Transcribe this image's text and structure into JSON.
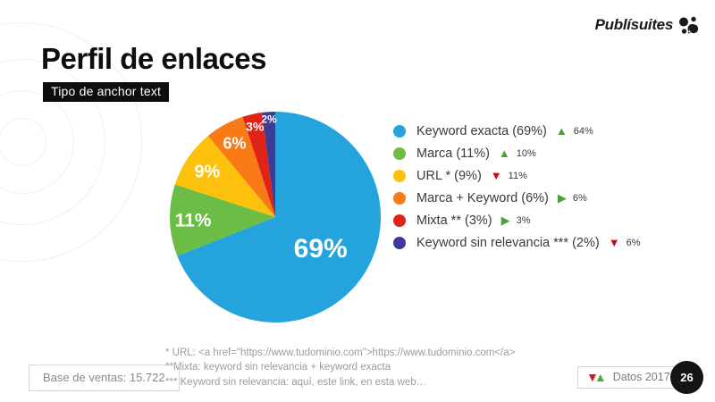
{
  "brand": {
    "logo_text": "Publísuites"
  },
  "header": {
    "title": "Perfil de enlaces",
    "subtitle_badge": "Tipo de anchor text"
  },
  "chart_data": {
    "type": "pie",
    "title": "Tipo de anchor text",
    "categories": [
      "Keyword exacta",
      "Marca",
      "URL *",
      "Marca + Keyword",
      "Mixta **",
      "Keyword sin relevancia ***"
    ],
    "values": [
      69,
      11,
      9,
      6,
      3,
      2
    ],
    "colors": [
      "#24A3DC",
      "#6BBD45",
      "#FCC10D",
      "#F87B18",
      "#E02318",
      "#3D3B98"
    ],
    "slice_labels": [
      "69%",
      "11%",
      "9%",
      "6%",
      "3%",
      "2%"
    ],
    "start_angle_deg": 0,
    "direction": "clockwise",
    "legend_position": "right",
    "comparison_year_2017_values": [
      64,
      10,
      11,
      6,
      3,
      6
    ]
  },
  "legend": {
    "items": [
      {
        "label": "Keyword exacta (69%)",
        "color": "#24A3DC",
        "trend": "up",
        "delta": "64%"
      },
      {
        "label": "Marca (11%)",
        "color": "#6BBD45",
        "trend": "up",
        "delta": "10%"
      },
      {
        "label": "URL * (9%)",
        "color": "#FCC10D",
        "trend": "down",
        "delta": "11%"
      },
      {
        "label": "Marca + Keyword (6%)",
        "color": "#F87B18",
        "trend": "right",
        "delta": "6%"
      },
      {
        "label": "Mixta ** (3%)",
        "color": "#E02318",
        "trend": "right",
        "delta": "3%"
      },
      {
        "label": "Keyword sin relevancia *** (2%)",
        "color": "#3D3B98",
        "trend": "down",
        "delta": "6%"
      }
    ]
  },
  "footnotes": [
    "* URL: <a href=\"https://www.tudominio.com\">https://www.tudominio.com</a>",
    "**Mixta: keyword sin relevancia + keyword exacta",
    "*** Keyword sin relevancia: aquí, este link, en esta web…"
  ],
  "footer": {
    "base_label": "Base de ventas: 15.722",
    "datos_label": "Datos 2017",
    "page_number": "26"
  }
}
